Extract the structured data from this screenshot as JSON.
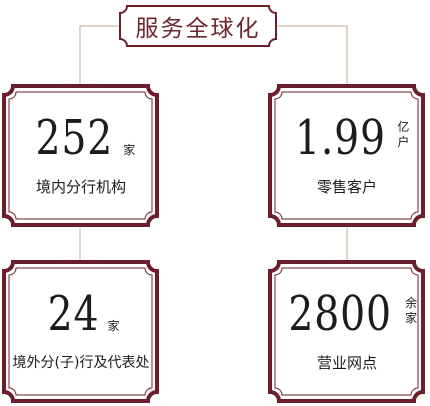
{
  "title": "服务全球化",
  "cards": [
    {
      "number": "252",
      "unit": [
        "家"
      ],
      "label": "境内分行机构"
    },
    {
      "number": "1.99",
      "unit": [
        "亿",
        "户"
      ],
      "label": "零售客户"
    },
    {
      "number": "24",
      "unit": [
        "家"
      ],
      "label": "境外分(子)行及代表处"
    },
    {
      "number": "2800",
      "unit": [
        "余",
        "家"
      ],
      "label": "营业网点"
    }
  ],
  "colors": {
    "frame": "#6b1f2c",
    "connector": "#c9a98e",
    "text": "#1c1c1c",
    "title": "#6d2530"
  }
}
